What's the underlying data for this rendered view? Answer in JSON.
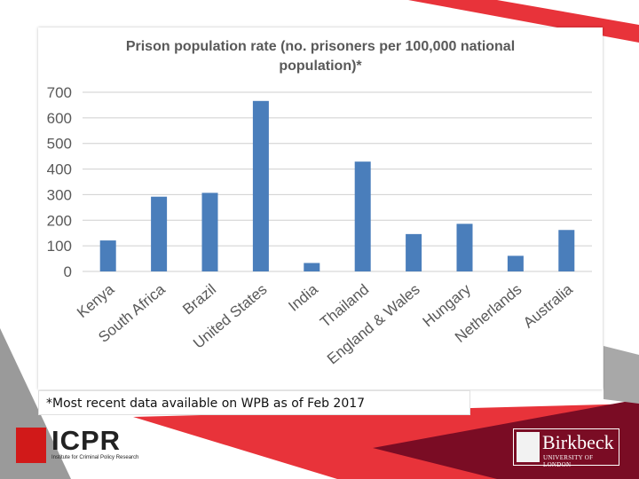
{
  "colors": {
    "bar": "#4a7ebb",
    "accent_red": "#e8333a",
    "dark_red": "#7a0c24",
    "grey": "#9a9a9a"
  },
  "footnote": "*Most recent data available on WPB as of Feb 2017",
  "logos": {
    "icpr": {
      "name": "ICPR",
      "subtitle": "Institute for Criminal Policy Research"
    },
    "birkbeck": {
      "name": "Birkbeck",
      "subtitle": "UNIVERSITY OF LONDON"
    }
  },
  "chart_data": {
    "type": "bar",
    "title": "Prison population rate (no. prisoners per 100,000 national population)*",
    "title_lines": [
      "Prison population rate (no. prisoners per 100,000 national",
      "population)*"
    ],
    "categories": [
      "Kenya",
      "South Africa",
      "Brazil",
      "United States",
      "India",
      "Thailand",
      "England & Wales",
      "Hungary",
      "Netherlands",
      "Australia"
    ],
    "values": [
      121,
      292,
      307,
      666,
      33,
      429,
      146,
      186,
      61,
      162
    ],
    "ylim": [
      0,
      700
    ],
    "yticks": [
      0,
      100,
      200,
      300,
      400,
      500,
      600,
      700
    ],
    "grid": true,
    "legend": "none"
  }
}
